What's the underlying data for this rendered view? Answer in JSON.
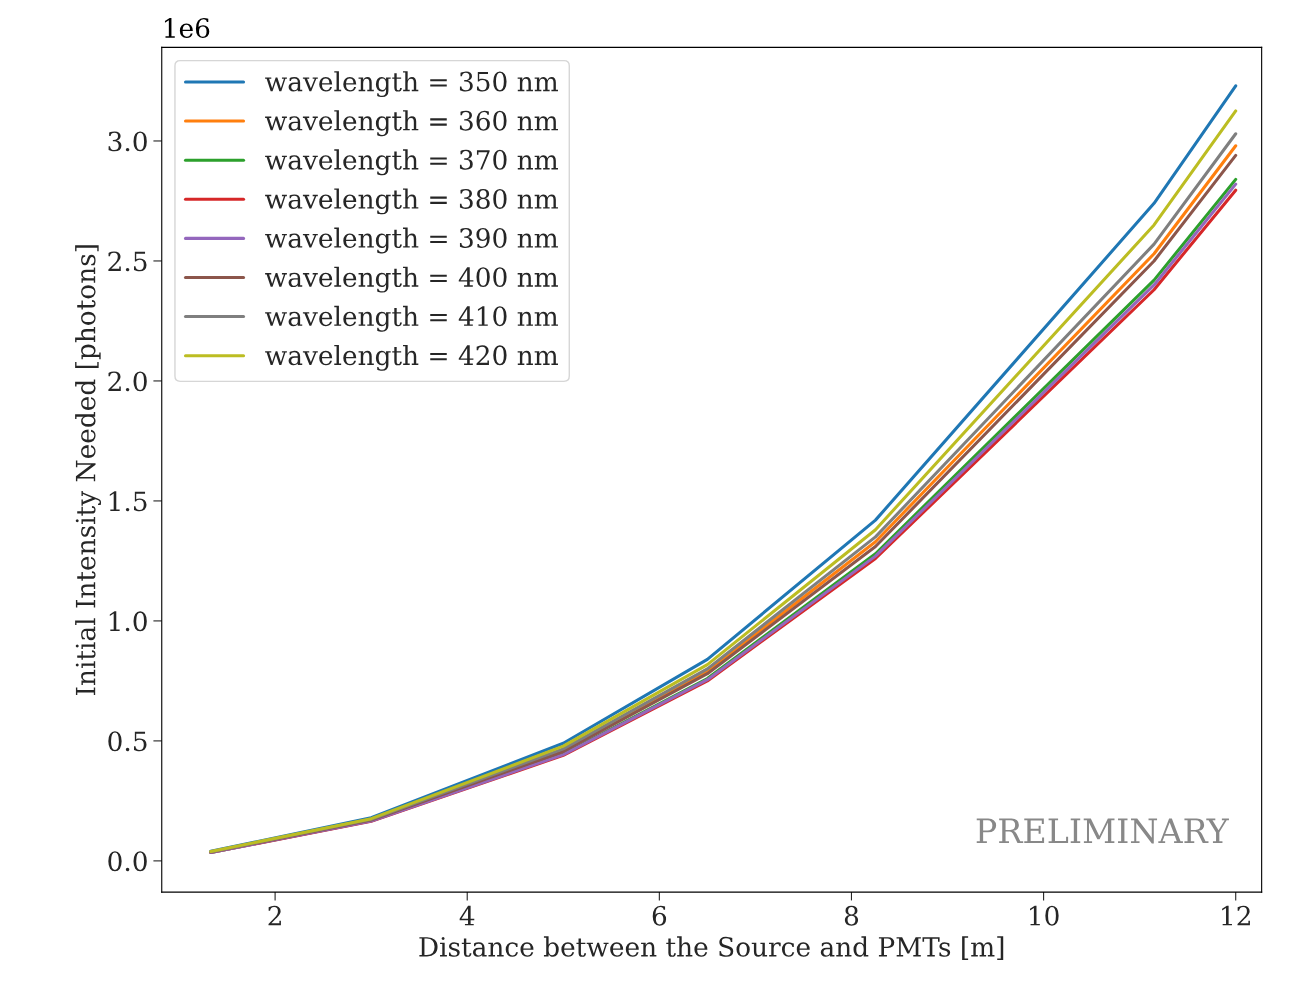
{
  "chart_data": {
    "type": "line",
    "xlabel": "Distance between the Source and PMTs [m]",
    "ylabel": "Initial Intensity Needed [photons]",
    "annotations": [
      "1e6",
      "PRELIMINARY"
    ],
    "x": [
      1.33,
      3.0,
      5.0,
      6.5,
      8.25,
      11.15,
      12.0
    ],
    "series": [
      {
        "name": "wavelength = 350 nm",
        "color": "#1f77b4",
        "values": [
          0.04,
          0.18,
          0.49,
          0.84,
          1.42,
          2.74,
          3.23
        ]
      },
      {
        "name": "wavelength = 360 nm",
        "color": "#ff7f0e",
        "values": [
          null,
          null,
          0.46,
          0.79,
          1.33,
          2.53,
          2.98
        ]
      },
      {
        "name": "wavelength = 370 nm",
        "color": "#2ca02c",
        "values": [
          0.035,
          0.167,
          0.445,
          0.76,
          1.28,
          2.42,
          2.84
        ]
      },
      {
        "name": "wavelength = 380 nm",
        "color": "#d62728",
        "values": [
          0.035,
          0.165,
          0.44,
          0.75,
          1.26,
          2.38,
          2.795
        ]
      },
      {
        "name": "wavelength = 390 nm",
        "color": "#9467bd",
        "values": [
          0.035,
          0.166,
          0.443,
          0.755,
          1.27,
          2.4,
          2.82
        ]
      },
      {
        "name": "wavelength = 400 nm",
        "color": "#8c564b",
        "values": [
          0.037,
          0.17,
          0.456,
          0.78,
          1.31,
          2.5,
          2.94
        ]
      },
      {
        "name": "wavelength = 410 nm",
        "color": "#7f7f7f",
        "values": [
          0.038,
          0.173,
          0.467,
          0.8,
          1.35,
          2.57,
          3.03
        ]
      },
      {
        "name": "wavelength = 420 nm",
        "color": "#bcbd22",
        "values": [
          0.039,
          0.176,
          0.478,
          0.818,
          1.38,
          2.65,
          3.125
        ]
      }
    ],
    "xlim": [
      0.82,
      12.27
    ],
    "xticks": [
      2,
      4,
      6,
      8,
      10,
      12
    ],
    "ylim": [
      -0.13,
      3.39
    ],
    "yticks": [
      {
        "value": 0,
        "label": "0.0"
      },
      {
        "value": 0.5,
        "label": "0.5"
      },
      {
        "value": 1,
        "label": "1.0"
      },
      {
        "value": 1.5,
        "label": "1.5"
      },
      {
        "value": 2,
        "label": "2.0"
      },
      {
        "value": 2.5,
        "label": "2.5"
      },
      {
        "value": 3,
        "label": "3.0"
      }
    ],
    "grid": false,
    "legend": "top left",
    "marker": "none",
    "line_style": "solid"
  }
}
